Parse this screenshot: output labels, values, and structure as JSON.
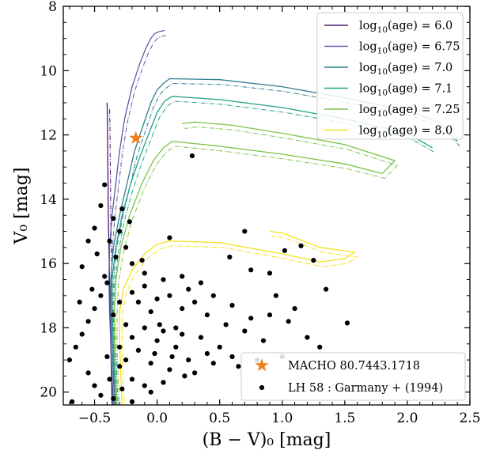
{
  "chart_data": {
    "type": "scatter",
    "xlabel": "(B − V)₀ [mag]",
    "ylabel": "V₀ [mag]",
    "xlim": [
      -0.75,
      2.5
    ],
    "ylim": [
      20.4,
      8.0
    ],
    "y_inverted": true,
    "xticks": [
      "−0.5",
      "0.0",
      "0.5",
      "1.0",
      "1.5",
      "2.0",
      "2.5"
    ],
    "xtick_values": [
      -0.5,
      0.0,
      0.5,
      1.0,
      1.5,
      2.0,
      2.5
    ],
    "yticks": [
      "8",
      "10",
      "12",
      "14",
      "16",
      "18",
      "20"
    ],
    "ytick_values": [
      8,
      10,
      12,
      14,
      16,
      18,
      20
    ],
    "grid": false,
    "isochrone_legend_position": "upper-right",
    "points_legend_position": "lower-right",
    "isochrones": [
      {
        "name": "log10(age) = 6.0",
        "label_prefix": "log",
        "label_sub": "10",
        "label_suffix": "(age) = 6.0",
        "color": "#4b1a6b",
        "points": [
          [
            -0.36,
            20.4
          ],
          [
            -0.365,
            19.5
          ],
          [
            -0.37,
            18.5
          ],
          [
            -0.375,
            17.5
          ],
          [
            -0.38,
            16.5
          ],
          [
            -0.385,
            15.5
          ],
          [
            -0.39,
            14.5
          ],
          [
            -0.392,
            13.5
          ],
          [
            -0.395,
            12.5
          ],
          [
            -0.397,
            11.6
          ],
          [
            -0.4,
            11.0
          ]
        ]
      },
      {
        "name": "log10(age) = 6.75",
        "label_prefix": "log",
        "label_sub": "10",
        "label_suffix": "(age) = 6.75",
        "color": "#5a5aa6",
        "points": [
          [
            -0.35,
            20.4
          ],
          [
            -0.36,
            19.5
          ],
          [
            -0.37,
            18.5
          ],
          [
            -0.38,
            17.5
          ],
          [
            -0.385,
            16.5
          ],
          [
            -0.38,
            15.5
          ],
          [
            -0.36,
            14.5
          ],
          [
            -0.33,
            13.5
          ],
          [
            -0.3,
            12.5
          ],
          [
            -0.26,
            11.5
          ],
          [
            -0.2,
            10.5
          ],
          [
            -0.14,
            9.8
          ],
          [
            -0.09,
            9.3
          ],
          [
            -0.05,
            9.0
          ],
          [
            -0.02,
            8.85
          ],
          [
            0.02,
            8.78
          ],
          [
            0.06,
            8.75
          ]
        ]
      },
      {
        "name": "log10(age) = 7.0",
        "label_prefix": "log",
        "label_sub": "10",
        "label_suffix": "(age) = 7.0",
        "color": "#2f7f8f",
        "points": [
          [
            -0.34,
            20.4
          ],
          [
            -0.35,
            19.5
          ],
          [
            -0.36,
            18.5
          ],
          [
            -0.37,
            17.5
          ],
          [
            -0.37,
            16.5
          ],
          [
            -0.35,
            15.5
          ],
          [
            -0.3,
            14.5
          ],
          [
            -0.24,
            13.5
          ],
          [
            -0.18,
            12.5
          ],
          [
            -0.12,
            11.8
          ],
          [
            -0.05,
            11.0
          ],
          [
            0.0,
            10.6
          ],
          [
            0.05,
            10.4
          ],
          [
            0.1,
            10.25
          ],
          [
            0.5,
            10.28
          ],
          [
            1.0,
            10.5
          ],
          [
            1.5,
            10.85
          ],
          [
            2.0,
            11.25
          ],
          [
            2.25,
            11.6
          ],
          [
            2.4,
            12.2
          ]
        ]
      },
      {
        "name": "log10(age) = 7.1",
        "label_prefix": "log",
        "label_sub": "10",
        "label_suffix": "(age) = 7.1",
        "color": "#25a186",
        "points": [
          [
            -0.33,
            20.4
          ],
          [
            -0.34,
            19.5
          ],
          [
            -0.35,
            18.5
          ],
          [
            -0.36,
            17.5
          ],
          [
            -0.36,
            16.5
          ],
          [
            -0.33,
            15.5
          ],
          [
            -0.28,
            14.5
          ],
          [
            -0.21,
            13.5
          ],
          [
            -0.14,
            12.7
          ],
          [
            -0.07,
            12.0
          ],
          [
            0.0,
            11.3
          ],
          [
            0.06,
            10.95
          ],
          [
            0.12,
            10.8
          ],
          [
            0.5,
            10.9
          ],
          [
            1.0,
            11.15
          ],
          [
            1.5,
            11.5
          ],
          [
            2.0,
            11.95
          ],
          [
            2.2,
            12.4
          ]
        ]
      },
      {
        "name": "log10(age) = 7.25",
        "label_prefix": "log",
        "label_sub": "10",
        "label_suffix": "(age) = 7.25",
        "color": "#7dc34a",
        "points": [
          [
            -0.32,
            20.4
          ],
          [
            -0.33,
            19.5
          ],
          [
            -0.34,
            18.5
          ],
          [
            -0.34,
            17.5
          ],
          [
            -0.33,
            16.5
          ],
          [
            -0.29,
            15.5
          ],
          [
            -0.22,
            14.5
          ],
          [
            -0.12,
            13.5
          ],
          [
            -0.03,
            12.8
          ],
          [
            0.05,
            12.4
          ],
          [
            0.12,
            12.2
          ],
          [
            0.5,
            12.35
          ],
          [
            1.0,
            12.6
          ],
          [
            1.5,
            12.9
          ],
          [
            1.8,
            13.2
          ],
          [
            1.9,
            12.8
          ],
          [
            1.5,
            12.3
          ],
          [
            1.0,
            11.95
          ],
          [
            0.6,
            11.7
          ],
          [
            0.3,
            11.6
          ],
          [
            0.2,
            11.65
          ]
        ]
      },
      {
        "name": "log10(age) = 8.0",
        "label_prefix": "log",
        "label_sub": "10",
        "label_suffix": "(age) = 8.0",
        "color": "#f5e11a",
        "points": [
          [
            -0.28,
            20.4
          ],
          [
            -0.29,
            19.5
          ],
          [
            -0.3,
            18.5
          ],
          [
            -0.3,
            17.5
          ],
          [
            -0.27,
            16.8
          ],
          [
            -0.2,
            16.2
          ],
          [
            -0.1,
            15.7
          ],
          [
            0.0,
            15.4
          ],
          [
            0.1,
            15.3
          ],
          [
            0.5,
            15.35
          ],
          [
            1.0,
            15.7
          ],
          [
            1.3,
            15.95
          ],
          [
            1.5,
            15.85
          ],
          [
            1.58,
            15.65
          ],
          [
            1.3,
            15.5
          ],
          [
            1.0,
            15.05
          ],
          [
            0.9,
            15.0
          ]
        ]
      }
    ],
    "special_star": {
      "name": "MACHO 80.7443.1718",
      "x": -0.17,
      "y": 12.1,
      "color": "#f07f22"
    },
    "garmany_series": {
      "name": "LH 58 : Garmany + (1994)",
      "color": "#000000",
      "points": [
        [
          0.28,
          12.65
        ],
        [
          -0.42,
          13.55
        ],
        [
          0.7,
          15.0
        ],
        [
          0.1,
          15.2
        ],
        [
          0.58,
          15.8
        ],
        [
          1.02,
          15.6
        ],
        [
          0.75,
          16.2
        ],
        [
          1.15,
          15.45
        ],
        [
          1.25,
          15.9
        ],
        [
          1.35,
          16.8
        ],
        [
          1.52,
          17.85
        ],
        [
          0.95,
          17.0
        ],
        [
          0.6,
          17.3
        ],
        [
          0.4,
          17.6
        ],
        [
          0.3,
          17.2
        ],
        [
          0.2,
          17.4
        ],
        [
          0.15,
          18.0
        ],
        [
          0.35,
          18.3
        ],
        [
          0.5,
          18.6
        ],
        [
          0.7,
          18.1
        ],
        [
          0.85,
          18.4
        ],
        [
          1.0,
          18.9
        ],
        [
          1.2,
          18.3
        ],
        [
          1.05,
          17.8
        ],
        [
          0.9,
          17.6
        ],
        [
          0.6,
          18.9
        ],
        [
          0.4,
          18.8
        ],
        [
          0.25,
          19.0
        ],
        [
          0.1,
          19.3
        ],
        [
          0.05,
          19.7
        ],
        [
          -0.05,
          20.0
        ],
        [
          0.22,
          19.5
        ],
        [
          0.15,
          18.6
        ],
        [
          0.0,
          18.4
        ],
        [
          -0.1,
          18.0
        ],
        [
          -0.05,
          17.5
        ],
        [
          0.1,
          17.0
        ],
        [
          0.05,
          16.5
        ],
        [
          -0.1,
          16.3
        ],
        [
          -0.2,
          16.0
        ],
        [
          -0.25,
          15.5
        ],
        [
          -0.3,
          15.0
        ],
        [
          -0.35,
          14.6
        ],
        [
          -0.45,
          14.2
        ],
        [
          -0.5,
          14.9
        ],
        [
          -0.55,
          15.3
        ],
        [
          -0.48,
          15.7
        ],
        [
          -0.6,
          16.1
        ],
        [
          -0.4,
          16.6
        ],
        [
          -0.45,
          17.0
        ],
        [
          -0.5,
          17.4
        ],
        [
          -0.55,
          17.8
        ],
        [
          -0.6,
          18.2
        ],
        [
          -0.65,
          18.6
        ],
        [
          -0.7,
          19.0
        ],
        [
          -0.55,
          19.4
        ],
        [
          -0.5,
          19.8
        ],
        [
          -0.45,
          20.1
        ],
        [
          -0.35,
          20.2
        ],
        [
          -0.2,
          20.3
        ],
        [
          -0.1,
          19.8
        ],
        [
          -0.2,
          19.6
        ],
        [
          -0.3,
          19.2
        ],
        [
          -0.4,
          18.9
        ],
        [
          -0.3,
          18.6
        ],
        [
          -0.2,
          18.3
        ],
        [
          -0.25,
          17.9
        ],
        [
          -0.35,
          17.6
        ],
        [
          -0.3,
          17.2
        ],
        [
          -0.2,
          16.9
        ],
        [
          -0.15,
          17.2
        ],
        [
          -0.1,
          16.7
        ],
        [
          0.0,
          17.1
        ],
        [
          0.02,
          17.9
        ],
        [
          -0.02,
          18.8
        ],
        [
          0.05,
          18.1
        ],
        [
          0.12,
          18.9
        ],
        [
          0.2,
          18.2
        ],
        [
          -0.15,
          18.7
        ],
        [
          -0.25,
          19.0
        ],
        [
          -0.38,
          19.6
        ],
        [
          -0.28,
          19.9
        ],
        [
          -0.05,
          19.1
        ],
        [
          0.3,
          19.4
        ],
        [
          0.45,
          19.1
        ],
        [
          0.65,
          19.2
        ],
        [
          0.8,
          19.0
        ],
        [
          0.55,
          17.9
        ],
        [
          0.75,
          17.7
        ],
        [
          0.45,
          17.0
        ],
        [
          0.25,
          16.8
        ],
        [
          -0.42,
          16.4
        ],
        [
          -0.52,
          16.8
        ],
        [
          -0.62,
          17.2
        ],
        [
          -0.33,
          15.8
        ],
        [
          -0.38,
          15.3
        ],
        [
          -0.28,
          14.3
        ],
        [
          -0.22,
          14.7
        ],
        [
          -0.12,
          15.9
        ],
        [
          0.2,
          16.4
        ],
        [
          0.35,
          16.6
        ],
        [
          0.9,
          16.3
        ],
        [
          1.1,
          17.4
        ],
        [
          1.3,
          18.6
        ],
        [
          -0.68,
          20.3
        ]
      ]
    }
  }
}
